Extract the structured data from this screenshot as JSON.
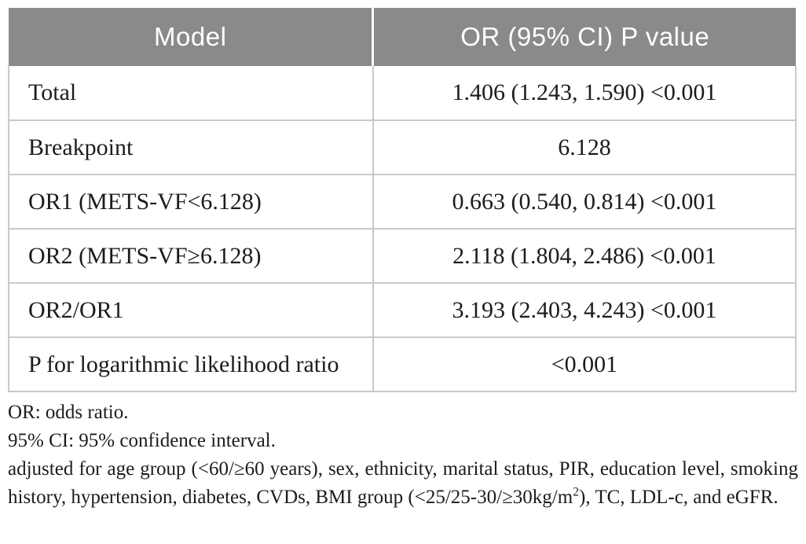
{
  "table": {
    "header": {
      "model": "Model",
      "value": "OR (95% CI) P value"
    },
    "rows": [
      {
        "model": "Total",
        "value": "1.406 (1.243, 1.590) <0.001"
      },
      {
        "model": "Breakpoint",
        "value": "6.128"
      },
      {
        "model": "OR1 (METS-VF<6.128)",
        "value": "0.663 (0.540, 0.814) <0.001"
      },
      {
        "model": "OR2 (METS-VF≥6.128)",
        "value": "2.118 (1.804, 2.486) <0.001"
      },
      {
        "model": "OR2/OR1",
        "value": "3.193 (2.403, 4.243) <0.001"
      },
      {
        "model": "P for logarithmic likelihood ratio",
        "value": "<0.001"
      }
    ]
  },
  "footnotes": {
    "note1": "OR: odds ratio.",
    "note2": "95% CI: 95% confidence interval.",
    "note3_pre": "adjusted for age group (<60/≥60 years), sex, ethnicity, marital status, PIR, education level, smoking history, hypertension, diabetes, CVDs, BMI group (<25/25-30/≥30kg/m",
    "note3_sup": "2",
    "note3_post": "), TC, LDL-c, and eGFR."
  },
  "colors": {
    "header_bg": "#8a8a8a",
    "header_text": "#ffffff",
    "border": "#c9c9c9",
    "body_text": "#1c1c1c"
  }
}
